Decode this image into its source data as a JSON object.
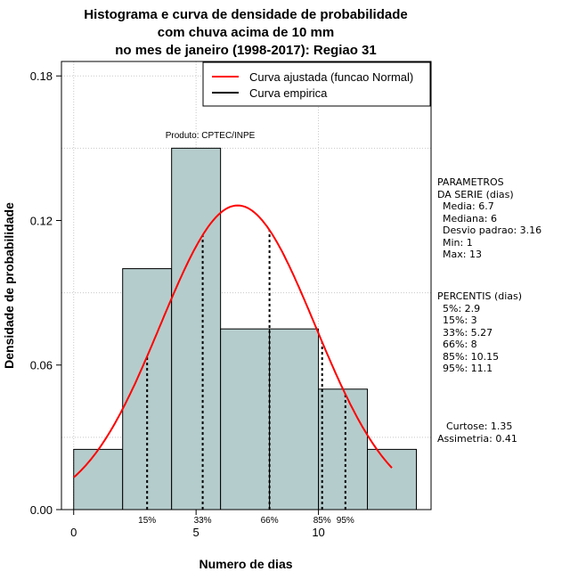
{
  "chart_data": {
    "type": "bar",
    "title_lines": [
      "Histograma e curva de densidade de probabilidade",
      "com chuva acima de 10 mm",
      "no mes de janeiro (1998-2017): Regiao 31"
    ],
    "xlabel": "Numero de dias",
    "ylabel": "Densidade de probabilidade",
    "xlim": [
      -0.5,
      14.6
    ],
    "ylim": [
      0,
      0.186
    ],
    "x_ticks": [
      "0",
      "5",
      "10"
    ],
    "x_tick_values": [
      0,
      5,
      10
    ],
    "y_ticks": [
      "0.00",
      "0.06",
      "0.12",
      "0.18"
    ],
    "y_tick_values": [
      0,
      0.06,
      0.12,
      0.18
    ],
    "grid": true,
    "bins": [
      {
        "start": 0,
        "end": 2,
        "density": 0.025
      },
      {
        "start": 2,
        "end": 4,
        "density": 0.1
      },
      {
        "start": 4,
        "end": 6,
        "density": 0.15
      },
      {
        "start": 6,
        "end": 8,
        "density": 0.075
      },
      {
        "start": 8,
        "end": 10,
        "density": 0.075
      },
      {
        "start": 10,
        "end": 12,
        "density": 0.05
      },
      {
        "start": 12,
        "end": 14,
        "density": 0.025
      }
    ],
    "fitted_curve": {
      "name": "Curva ajustada (funcao Normal)",
      "color": "#ff0000",
      "mean": 6.7,
      "sd": 3.16,
      "x_range": [
        0,
        13
      ]
    },
    "empirical_curve": {
      "name": "Curva empirica",
      "color": "#000000"
    },
    "percentile_lines": [
      {
        "label": "15%",
        "x": 3
      },
      {
        "label": "33%",
        "x": 5.27
      },
      {
        "label": "66%",
        "x": 8
      },
      {
        "label": "85%",
        "x": 10.15
      },
      {
        "label": "95%",
        "x": 11.1
      }
    ],
    "annotation": "Produto: CPTEC/INPE",
    "legend_position": "top-right",
    "bar_color": "#b5cccc"
  },
  "parametros": {
    "header": [
      "PARAMETROS",
      "DA SERIE (dias)"
    ],
    "lines": [
      "Media: 6.7",
      "Mediana: 6",
      "Desvio padrao: 3.16",
      "Min: 1",
      "Max: 13"
    ]
  },
  "percentis": {
    "header": "PERCENTIS (dias)",
    "lines": [
      "5%: 2.9",
      "15%: 3",
      "33%: 5.27",
      "66%: 8",
      "85%: 10.15",
      "95%: 11.1"
    ]
  },
  "stats": {
    "curtose": "Curtose: 1.35",
    "assimetria": "Assimetria: 0.41"
  }
}
